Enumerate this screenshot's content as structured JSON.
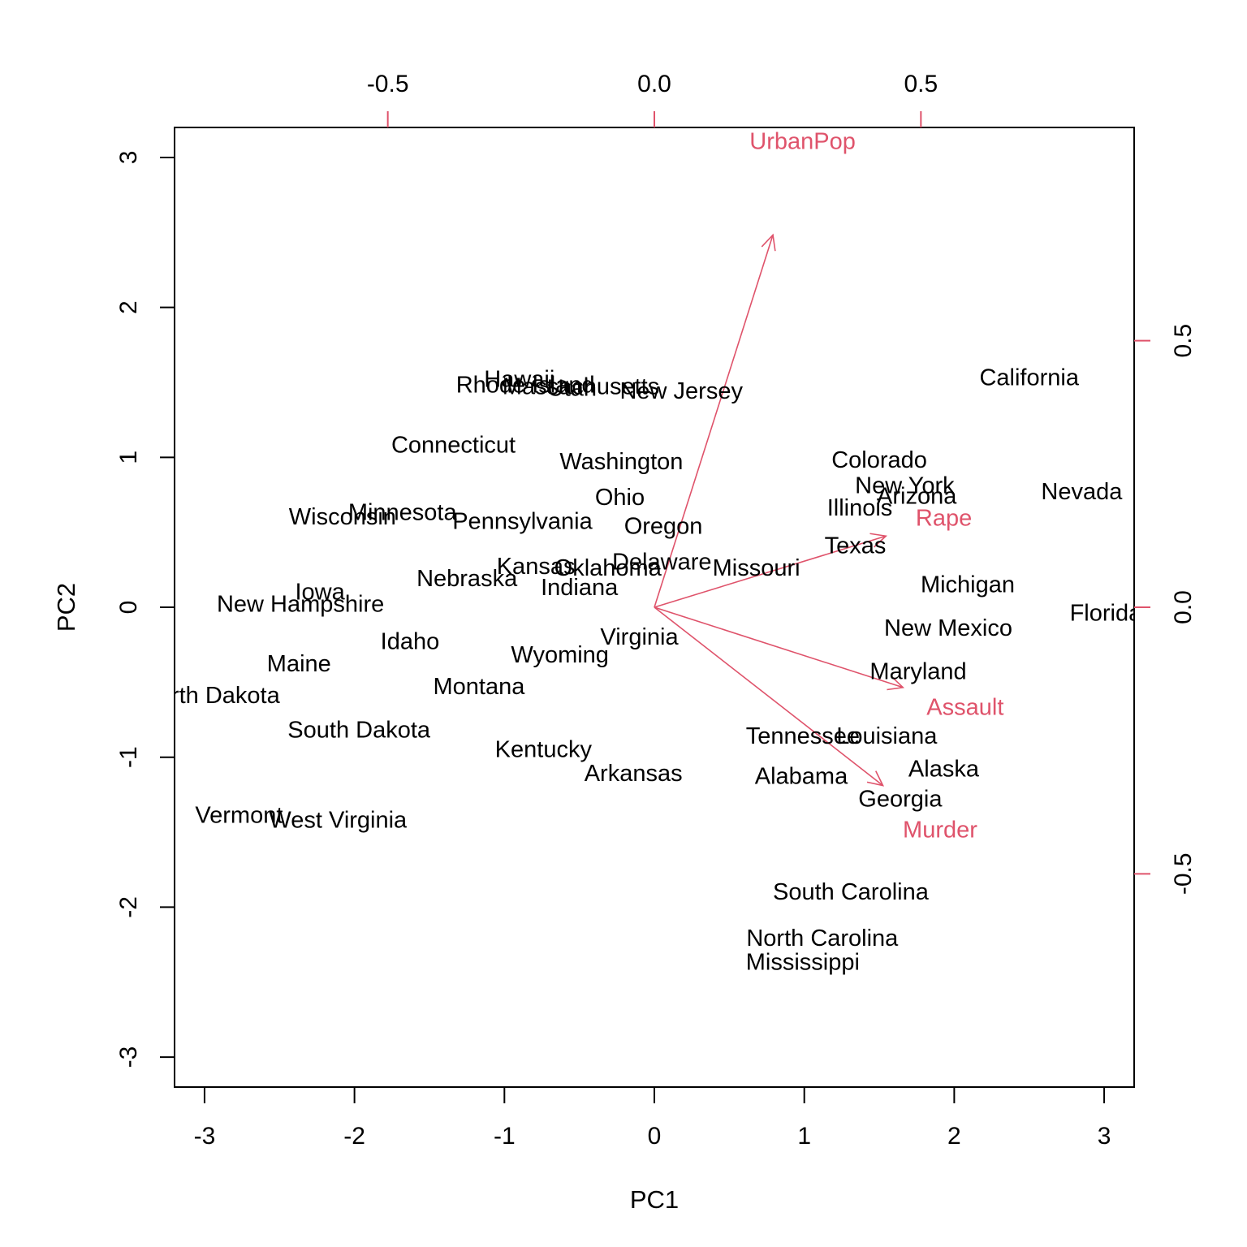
{
  "chart_data": {
    "type": "scatter",
    "subtype": "biplot",
    "xlabel": "PC1",
    "ylabel": "PC2",
    "xlim": [
      -3.2,
      3.2
    ],
    "ylim": [
      -3.2,
      3.2
    ],
    "xticks": [
      -3,
      -2,
      -1,
      0,
      1,
      2,
      3
    ],
    "yticks": [
      -3,
      -2,
      -1,
      0,
      1,
      2,
      3
    ],
    "loadings_xlim": [
      -0.9,
      0.9
    ],
    "loadings_ylim": [
      -0.9,
      0.9
    ],
    "top_ticks": [
      -0.5,
      0.0,
      0.5
    ],
    "top_tick_labels": [
      "-0.5",
      "0.0",
      "0.5"
    ],
    "right_ticks": [
      -0.5,
      0.0,
      0.5
    ],
    "right_tick_labels": [
      "-0.5",
      "0.0",
      "0.5"
    ],
    "grid": false,
    "colors": {
      "observations": "#000000",
      "loadings": "#DF536B",
      "frame": "#000000"
    },
    "observations": [
      {
        "label": "Alabama",
        "x": 0.98,
        "y": -1.13
      },
      {
        "label": "Alaska",
        "x": 1.93,
        "y": -1.08
      },
      {
        "label": "Arizona",
        "x": 1.75,
        "y": 0.74
      },
      {
        "label": "Arkansas",
        "x": -0.14,
        "y": -1.11
      },
      {
        "label": "California",
        "x": 2.5,
        "y": 1.53
      },
      {
        "label": "Colorado",
        "x": 1.5,
        "y": 0.98
      },
      {
        "label": "Connecticut",
        "x": -1.34,
        "y": 1.08
      },
      {
        "label": "Delaware",
        "x": 0.05,
        "y": 0.3
      },
      {
        "label": "Florida",
        "x": 3.01,
        "y": -0.04
      },
      {
        "label": "Georgia",
        "x": 1.64,
        "y": -1.28
      },
      {
        "label": "Hawaii",
        "x": -0.9,
        "y": 1.52
      },
      {
        "label": "Idaho",
        "x": -1.63,
        "y": -0.23
      },
      {
        "label": "Illinois",
        "x": 1.37,
        "y": 0.66
      },
      {
        "label": "Indiana",
        "x": -0.5,
        "y": 0.13
      },
      {
        "label": "Iowa",
        "x": -2.23,
        "y": 0.1
      },
      {
        "label": "Kansas",
        "x": -0.79,
        "y": 0.27
      },
      {
        "label": "Kentucky",
        "x": -0.74,
        "y": -0.95
      },
      {
        "label": "Louisiana",
        "x": 1.55,
        "y": -0.86
      },
      {
        "label": "Maine",
        "x": -2.37,
        "y": -0.38
      },
      {
        "label": "Maryland",
        "x": 1.76,
        "y": -0.43
      },
      {
        "label": "Massachusetts",
        "x": -0.49,
        "y": 1.47
      },
      {
        "label": "Michigan",
        "x": 2.09,
        "y": 0.15
      },
      {
        "label": "Minnesota",
        "x": -1.68,
        "y": 0.63
      },
      {
        "label": "Mississippi",
        "x": 0.99,
        "y": -2.37
      },
      {
        "label": "Missouri",
        "x": 0.68,
        "y": 0.26
      },
      {
        "label": "Montana",
        "x": -1.17,
        "y": -0.53
      },
      {
        "label": "Nebraska",
        "x": -1.25,
        "y": 0.19
      },
      {
        "label": "Nevada",
        "x": 2.85,
        "y": 0.77
      },
      {
        "label": "New Hampshire",
        "x": -2.36,
        "y": 0.02
      },
      {
        "label": "New Jersey",
        "x": 0.18,
        "y": 1.44
      },
      {
        "label": "New Mexico",
        "x": 1.96,
        "y": -0.14
      },
      {
        "label": "New York",
        "x": 1.67,
        "y": 0.81
      },
      {
        "label": "North Carolina",
        "x": 1.12,
        "y": -2.21
      },
      {
        "label": "North Dakota",
        "x": -2.96,
        "y": -0.59
      },
      {
        "label": "Ohio",
        "x": -0.23,
        "y": 0.73
      },
      {
        "label": "Oklahoma",
        "x": -0.31,
        "y": 0.26
      },
      {
        "label": "Oregon",
        "x": 0.06,
        "y": 0.54
      },
      {
        "label": "Pennsylvania",
        "x": -0.88,
        "y": 0.57
      },
      {
        "label": "Rhode Island",
        "x": -0.86,
        "y": 1.48
      },
      {
        "label": "South Carolina",
        "x": 1.31,
        "y": -1.9
      },
      {
        "label": "South Dakota",
        "x": -1.97,
        "y": -0.82
      },
      {
        "label": "Tennessee",
        "x": 0.99,
        "y": -0.86
      },
      {
        "label": "Texas",
        "x": 1.34,
        "y": 0.41
      },
      {
        "label": "Utah",
        "x": -0.55,
        "y": 1.46
      },
      {
        "label": "Vermont",
        "x": -2.77,
        "y": -1.39
      },
      {
        "label": "Virginia",
        "x": -0.1,
        "y": -0.2
      },
      {
        "label": "Washington",
        "x": -0.22,
        "y": 0.97
      },
      {
        "label": "West Virginia",
        "x": -2.11,
        "y": -1.42
      },
      {
        "label": "Wisconsin",
        "x": -2.08,
        "y": 0.6
      },
      {
        "label": "Wyoming",
        "x": -0.63,
        "y": -0.32
      }
    ],
    "loadings": [
      {
        "label": "Murder",
        "x": 0.536,
        "y": -0.418
      },
      {
        "label": "Assault",
        "x": 0.583,
        "y": -0.188
      },
      {
        "label": "UrbanPop",
        "x": 0.278,
        "y": 0.873
      },
      {
        "label": "Rape",
        "x": 0.543,
        "y": 0.167
      }
    ]
  }
}
